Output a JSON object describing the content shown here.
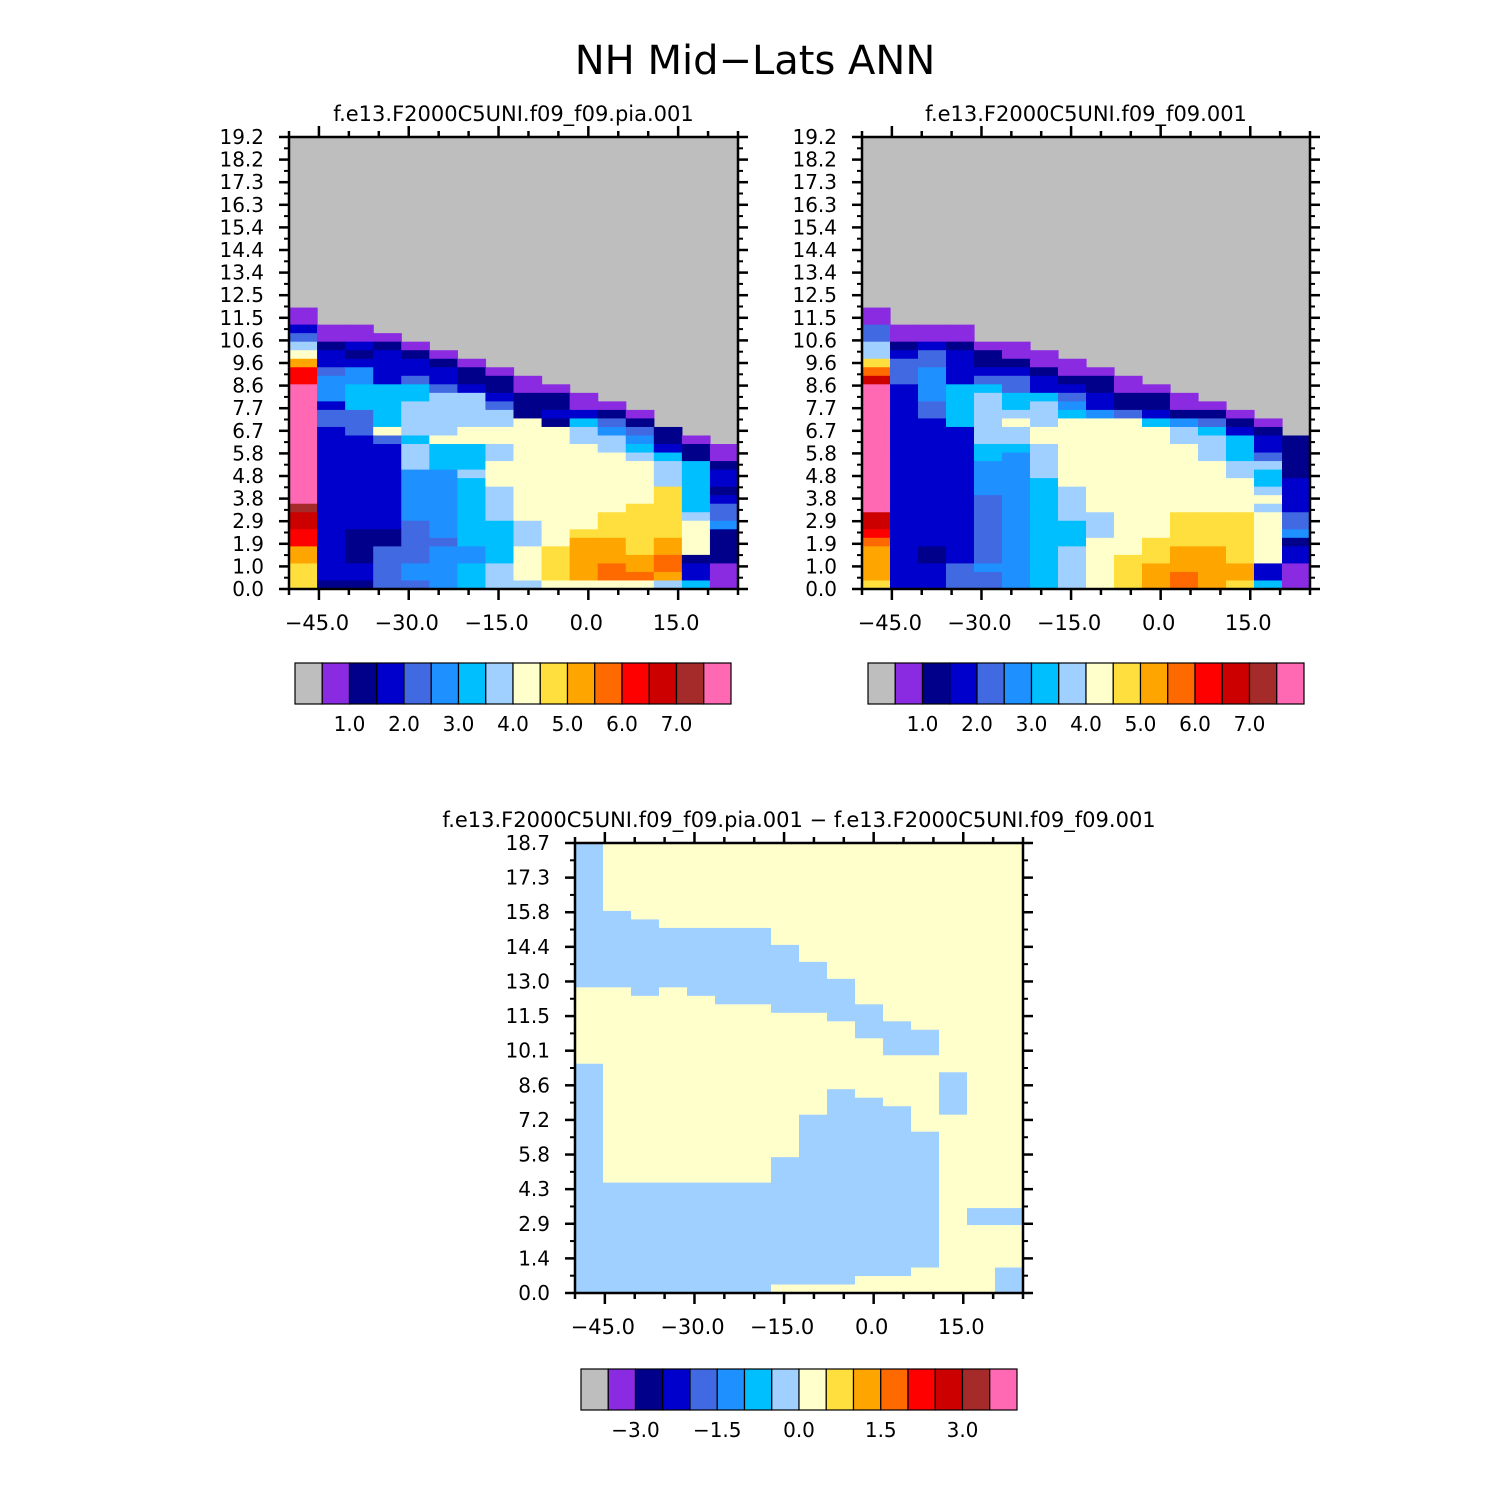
{
  "title": "NH Mid−Lats ANN",
  "palette": {
    "colors": [
      "#bebebe",
      "#8a2be2",
      "#00008b",
      "#0000cd",
      "#4169e1",
      "#1e90ff",
      "#00bfff",
      "#a0d0ff",
      "#ffffcc",
      "#ffdf3d",
      "#ffa500",
      "#ff6a00",
      "#ff0000",
      "#cd0000",
      "#a52a2a",
      "#ff69b4"
    ],
    "missing_color": "#bebebe"
  },
  "chart_data": [
    {
      "type": "heatmap",
      "title": "f.e13.F2000C5UNI.f09_f09.pia.001",
      "x_ticks": [
        "−45.0",
        "−30.0",
        "−15.0",
        "0.0",
        "15.0"
      ],
      "x_tick_values": [
        -45,
        -30,
        -15,
        0,
        15
      ],
      "xlim": [
        -50,
        25
      ],
      "y_ticks": [
        "19.2",
        "18.2",
        "17.3",
        "16.3",
        "15.4",
        "14.4",
        "13.4",
        "12.5",
        "11.5",
        "10.6",
        "9.6",
        "8.6",
        "7.7",
        "6.7",
        "5.8",
        "4.8",
        "3.8",
        "2.9",
        "1.9",
        "1.0",
        "0.0"
      ],
      "ylim": [
        0,
        19.2
      ],
      "colorbar_labels": [
        "1.0",
        "2.0",
        "3.0",
        "4.0",
        "5.0",
        "6.0",
        "7.0"
      ],
      "grid_rows_top_to_bottom": [
        "0000000000000000",
        "0000000000000000",
        "0000000000000000",
        "0000000000000000",
        "0000000000000000",
        "0000000000000000",
        "0000000000000000",
        "0000000000000000",
        "0000000000000000",
        "0000000000000000",
        "0000000000000000",
        "0000000000000000",
        "0000000000000000",
        "0000000000000000",
        "0000000000000000",
        "0000000000000000",
        "0000000000000000",
        "0000000000000000",
        "0000000000000000",
        "0000000000000000",
        "1000000000000000",
        "1000000000000000",
        "3110000000000000",
        "4111000000000000",
        "7232100000000000",
        "8323210000000000",
        "A333321000000000",
        "C453332100000000",
        "C553432210000000",
        "F566643211000000",
        "F566677322100000",
        "F366777422110000",
        "F446777723321000",
        "F446777782642000",
        "F348778888754200",
        "F334688888775210",
        "F333766788876321",
        "F333766788887621",
        "F333766888888762",
        "F333557888888763",
        "F333556888888763",
        "F333556788888962",
        "F333556788888963",
        "E333556788889964",
        "D333556788899974",
        "D333456678899985",
        "C322456678999982",
        "C322446678AA9A82",
        "A324455689AA9A82",
        "A324455689AAAB22",
        "9334556789ABAB31",
        "9334556789ABBA31",
        "9224456778888761"
      ]
    },
    {
      "type": "heatmap",
      "title": "f.e13.F2000C5UNI.f09_f09.001",
      "x_ticks": [
        "−45.0",
        "−30.0",
        "−15.0",
        "0.0",
        "15.0"
      ],
      "x_tick_values": [
        -45,
        -30,
        -15,
        0,
        15
      ],
      "xlim": [
        -50,
        25
      ],
      "y_ticks": [
        "19.2",
        "18.2",
        "17.3",
        "16.3",
        "15.4",
        "14.4",
        "13.4",
        "12.5",
        "11.5",
        "10.6",
        "9.6",
        "8.6",
        "7.7",
        "6.7",
        "5.8",
        "4.8",
        "3.8",
        "2.9",
        "1.9",
        "1.0",
        "0.0"
      ],
      "ylim": [
        0,
        19.2
      ],
      "colorbar_labels": [
        "1.0",
        "2.0",
        "3.0",
        "4.0",
        "5.0",
        "6.0",
        "7.0"
      ],
      "grid_rows_top_to_bottom": [
        "0000000000000000",
        "0000000000000000",
        "0000000000000000",
        "0000000000000000",
        "0000000000000000",
        "0000000000000000",
        "0000000000000000",
        "0000000000000000",
        "0000000000000000",
        "0000000000000000",
        "0000000000000000",
        "0000000000000000",
        "0000000000000000",
        "0000000000000000",
        "0000000000000000",
        "0000000000000000",
        "0000000000000000",
        "0000000000000000",
        "0000000000000000",
        "0000000000000000",
        "1000000000000000",
        "1000000000000000",
        "4111000000000000",
        "4111000000000000",
        "7232110000000000",
        "7343211000000000",
        "9443221100000000",
        "B453332110000000",
        "D453443221000000",
        "F356643321100000",
        "F356766432210000",
        "F346767532211000",
        "F346777654322100",
        "F336787888654210",
        "F333778888876320",
        "F333778888877632",
        "F333667888887632",
        "F333657888887642",
        "F333557888888772",
        "F333557888888762",
        "F333556888888863",
        "F333556788888873",
        "F333456788888883",
        "F333456788888873",
        "D333456778899984",
        "D333456678899984",
        "C333456678899985",
        "B333456688999982",
        "A3234567889AA983",
        "A3234567899AA983",
        "A334556789AAAA31",
        "A334456789ABAA31",
        "9334456789ABA961"
      ]
    },
    {
      "type": "heatmap",
      "title": "f.e13.F2000C5UNI.f09_f09.pia.001 − f.e13.F2000C5UNI.f09_f09.001",
      "x_ticks": [
        "−45.0",
        "−30.0",
        "−15.0",
        "0.0",
        "15.0"
      ],
      "x_tick_values": [
        -45,
        -30,
        -15,
        0,
        15
      ],
      "xlim": [
        -50,
        25
      ],
      "y_ticks": [
        "18.7",
        "17.3",
        "15.8",
        "14.4",
        "13.0",
        "11.5",
        "10.1",
        "8.6",
        "7.2",
        "5.8",
        "4.3",
        "2.9",
        "1.4",
        "0.0"
      ],
      "ylim": [
        0,
        19.2
      ],
      "colorbar_labels": [
        "−3.0",
        "−1.5",
        "0.0",
        "1.5",
        "3.0"
      ],
      "grid_rows_top_to_bottom": [
        "7888888888888888",
        "7888888888888888",
        "7888888888888888",
        "7888888888888888",
        "7888888888888888",
        "7888888888888888",
        "7888888888888888",
        "7888888888888888",
        "7788888888888888",
        "7778888888888888",
        "7777777888888888",
        "7777777888888888",
        "7777777788888888",
        "7777777788888888",
        "7777777778888888",
        "7777777778888888",
        "7777777777888888",
        "8878777777888888",
        "8888877777888888",
        "8888888777788888",
        "8888888887788888",
        "8888888888778888",
        "8888888888777888",
        "8888888888877888",
        "8888888888877888",
        "8888888888888888",
        "7888888888888888",
        "7888888888888788",
        "7888888888888788",
        "7888888887888788",
        "7888888887788788",
        "7888888887778788",
        "7888888877778888",
        "7888888877778888",
        "7888888877777888",
        "7888888877777888",
        "7888888877777888",
        "7888888777777888",
        "7888888777777888",
        "7888888777777888",
        "7777777777777888",
        "7777777777777888",
        "7777777777777888",
        "7777777777777877",
        "7777777777777877",
        "7777777777777888",
        "7777777777777888",
        "7777777777777888",
        "7777777777777888",
        "7777777777777888",
        "7777777777778887",
        "7777777777888887",
        "7777777888888887"
      ]
    }
  ]
}
